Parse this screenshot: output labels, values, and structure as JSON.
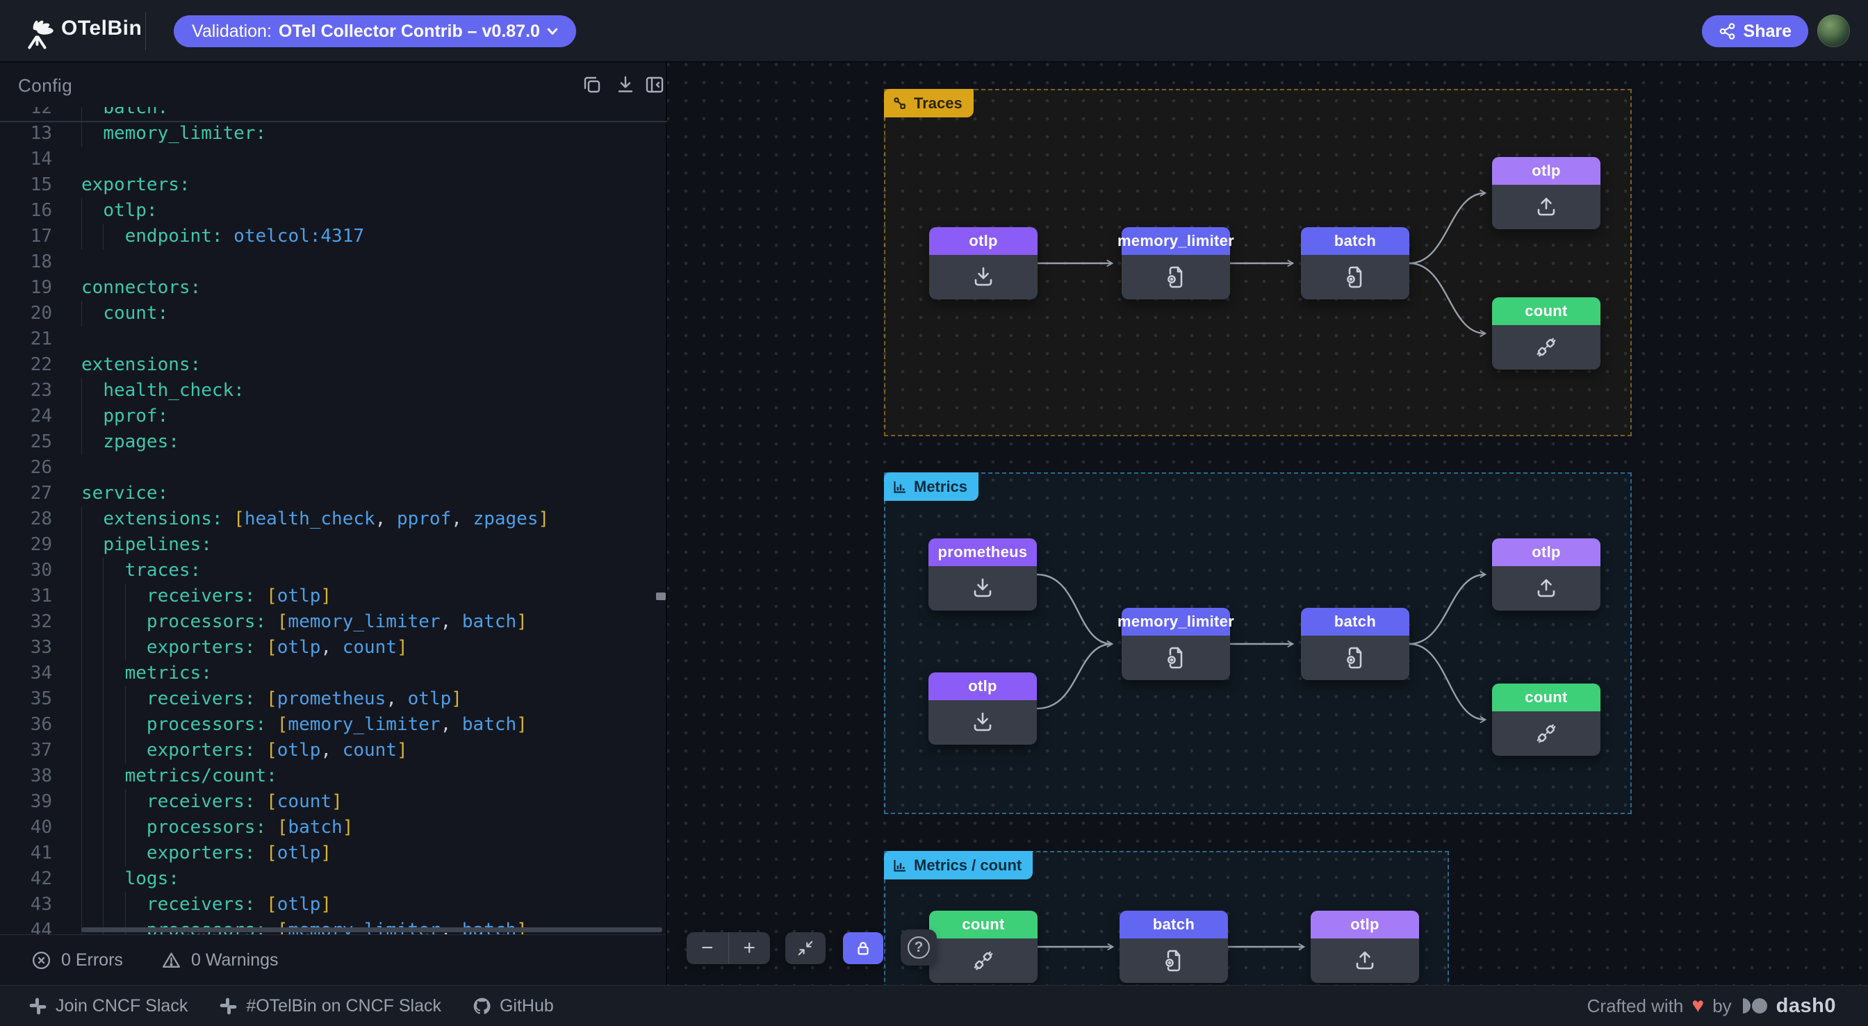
{
  "header": {
    "app_name": "OTelBin",
    "validation": {
      "label": "Validation:",
      "value": "OTel Collector Contrib – v0.87.0"
    },
    "share_label": "Share"
  },
  "config_panel": {
    "title": "Config",
    "status_bar": {
      "errors": "0 Errors",
      "warnings": "0 Warnings"
    },
    "code_lines": [
      {
        "n": 12,
        "i": 1,
        "seg": [
          [
            "k",
            "batch:"
          ]
        ]
      },
      {
        "n": 13,
        "i": 1,
        "seg": [
          [
            "k",
            "memory_limiter:"
          ]
        ]
      },
      {
        "n": 14,
        "i": 0,
        "seg": []
      },
      {
        "n": 15,
        "i": 0,
        "seg": [
          [
            "k",
            "exporters:"
          ]
        ]
      },
      {
        "n": 16,
        "i": 1,
        "seg": [
          [
            "k",
            "otlp:"
          ]
        ]
      },
      {
        "n": 17,
        "i": 2,
        "seg": [
          [
            "k",
            "endpoint:"
          ],
          [
            "p",
            " "
          ],
          [
            "v",
            "otelcol:4317"
          ]
        ]
      },
      {
        "n": 18,
        "i": 0,
        "seg": []
      },
      {
        "n": 19,
        "i": 0,
        "seg": [
          [
            "k",
            "connectors:"
          ]
        ]
      },
      {
        "n": 20,
        "i": 1,
        "seg": [
          [
            "k",
            "count:"
          ]
        ]
      },
      {
        "n": 21,
        "i": 0,
        "seg": []
      },
      {
        "n": 22,
        "i": 0,
        "seg": [
          [
            "k",
            "extensions:"
          ]
        ]
      },
      {
        "n": 23,
        "i": 1,
        "seg": [
          [
            "k",
            "health_check:"
          ]
        ]
      },
      {
        "n": 24,
        "i": 1,
        "seg": [
          [
            "k",
            "pprof:"
          ]
        ]
      },
      {
        "n": 25,
        "i": 1,
        "seg": [
          [
            "k",
            "zpages:"
          ]
        ]
      },
      {
        "n": 26,
        "i": 0,
        "seg": []
      },
      {
        "n": 27,
        "i": 0,
        "seg": [
          [
            "k",
            "service:"
          ]
        ]
      },
      {
        "n": 28,
        "i": 1,
        "seg": [
          [
            "k",
            "extensions:"
          ],
          [
            "p",
            " "
          ],
          [
            "b",
            "["
          ],
          [
            "v",
            "health_check"
          ],
          [
            "c",
            ", "
          ],
          [
            "v",
            "pprof"
          ],
          [
            "c",
            ", "
          ],
          [
            "v",
            "zpages"
          ],
          [
            "b",
            "]"
          ]
        ]
      },
      {
        "n": 29,
        "i": 1,
        "seg": [
          [
            "k",
            "pipelines:"
          ]
        ]
      },
      {
        "n": 30,
        "i": 2,
        "seg": [
          [
            "k",
            "traces:"
          ]
        ]
      },
      {
        "n": 31,
        "i": 3,
        "seg": [
          [
            "k",
            "receivers:"
          ],
          [
            "p",
            " "
          ],
          [
            "b",
            "["
          ],
          [
            "v",
            "otlp"
          ],
          [
            "b",
            "]"
          ]
        ]
      },
      {
        "n": 32,
        "i": 3,
        "seg": [
          [
            "k",
            "processors:"
          ],
          [
            "p",
            " "
          ],
          [
            "b",
            "["
          ],
          [
            "v",
            "memory_limiter"
          ],
          [
            "c",
            ", "
          ],
          [
            "v",
            "batch"
          ],
          [
            "b",
            "]"
          ]
        ]
      },
      {
        "n": 33,
        "i": 3,
        "seg": [
          [
            "k",
            "exporters:"
          ],
          [
            "p",
            " "
          ],
          [
            "b",
            "["
          ],
          [
            "v",
            "otlp"
          ],
          [
            "c",
            ", "
          ],
          [
            "v",
            "count"
          ],
          [
            "b",
            "]"
          ]
        ]
      },
      {
        "n": 34,
        "i": 2,
        "seg": [
          [
            "k",
            "metrics:"
          ]
        ]
      },
      {
        "n": 35,
        "i": 3,
        "seg": [
          [
            "k",
            "receivers:"
          ],
          [
            "p",
            " "
          ],
          [
            "b",
            "["
          ],
          [
            "v",
            "prometheus"
          ],
          [
            "c",
            ", "
          ],
          [
            "v",
            "otlp"
          ],
          [
            "b",
            "]"
          ]
        ]
      },
      {
        "n": 36,
        "i": 3,
        "seg": [
          [
            "k",
            "processors:"
          ],
          [
            "p",
            " "
          ],
          [
            "b",
            "["
          ],
          [
            "v",
            "memory_limiter"
          ],
          [
            "c",
            ", "
          ],
          [
            "v",
            "batch"
          ],
          [
            "b",
            "]"
          ]
        ]
      },
      {
        "n": 37,
        "i": 3,
        "seg": [
          [
            "k",
            "exporters:"
          ],
          [
            "p",
            " "
          ],
          [
            "b",
            "["
          ],
          [
            "v",
            "otlp"
          ],
          [
            "c",
            ", "
          ],
          [
            "v",
            "count"
          ],
          [
            "b",
            "]"
          ]
        ]
      },
      {
        "n": 38,
        "i": 2,
        "seg": [
          [
            "k",
            "metrics/count:"
          ]
        ]
      },
      {
        "n": 39,
        "i": 3,
        "seg": [
          [
            "k",
            "receivers:"
          ],
          [
            "p",
            " "
          ],
          [
            "b",
            "["
          ],
          [
            "v",
            "count"
          ],
          [
            "b",
            "]"
          ]
        ]
      },
      {
        "n": 40,
        "i": 3,
        "seg": [
          [
            "k",
            "processors:"
          ],
          [
            "p",
            " "
          ],
          [
            "b",
            "["
          ],
          [
            "v",
            "batch"
          ],
          [
            "b",
            "]"
          ]
        ]
      },
      {
        "n": 41,
        "i": 3,
        "seg": [
          [
            "k",
            "exporters:"
          ],
          [
            "p",
            " "
          ],
          [
            "b",
            "["
          ],
          [
            "v",
            "otlp"
          ],
          [
            "b",
            "]"
          ]
        ]
      },
      {
        "n": 42,
        "i": 2,
        "seg": [
          [
            "k",
            "logs:"
          ]
        ]
      },
      {
        "n": 43,
        "i": 3,
        "seg": [
          [
            "k",
            "receivers:"
          ],
          [
            "p",
            " "
          ],
          [
            "b",
            "["
          ],
          [
            "v",
            "otlp"
          ],
          [
            "b",
            "]"
          ]
        ]
      },
      {
        "n": 44,
        "i": 3,
        "seg": [
          [
            "k",
            "processors:"
          ],
          [
            "p",
            " "
          ],
          [
            "b",
            "["
          ],
          [
            "v",
            "memory_limiter"
          ],
          [
            "c",
            ", "
          ],
          [
            "v",
            "batch"
          ],
          [
            "b",
            "]"
          ]
        ]
      }
    ]
  },
  "flow": {
    "sections": {
      "traces": {
        "label": "Traces",
        "nodes": [
          {
            "label": "otlp",
            "type": "receiver"
          },
          {
            "label": "memory_limiter",
            "type": "processor"
          },
          {
            "label": "batch",
            "type": "processor"
          },
          {
            "label": "otlp",
            "type": "exporter"
          },
          {
            "label": "count",
            "type": "connector"
          }
        ]
      },
      "metrics": {
        "label": "Metrics",
        "nodes": [
          {
            "label": "prometheus",
            "type": "receiver"
          },
          {
            "label": "otlp",
            "type": "receiver"
          },
          {
            "label": "memory_limiter",
            "type": "processor"
          },
          {
            "label": "batch",
            "type": "processor"
          },
          {
            "label": "otlp",
            "type": "exporter"
          },
          {
            "label": "count",
            "type": "connector"
          }
        ]
      },
      "metrics_count": {
        "label": "Metrics / count",
        "nodes": [
          {
            "label": "count",
            "type": "connector"
          },
          {
            "label": "batch",
            "type": "processor"
          },
          {
            "label": "otlp",
            "type": "exporter"
          }
        ]
      }
    },
    "toolbar": {
      "zoom_out": "−",
      "zoom_in": "+",
      "help": "?"
    }
  },
  "footer": {
    "links": [
      "Join CNCF Slack",
      "#OTelBin on CNCF Slack",
      "GitHub"
    ],
    "credit": {
      "prefix": "Crafted with",
      "heart": "♥",
      "by": "by",
      "brand": "dash0"
    }
  },
  "colors": {
    "accent_purple": "#6468f1",
    "receiver_header": "#8b5cf6",
    "processor_header": "#6366f1",
    "exporter_header": "#a57bf7",
    "connector_header": "#3ecf79",
    "traces_tag": "#d9a418",
    "metrics_tag": "#3cb9f0",
    "yaml_key": "#3fc6ad",
    "yaml_value": "#4d9fe8",
    "yaml_bracket": "#d6b336"
  }
}
